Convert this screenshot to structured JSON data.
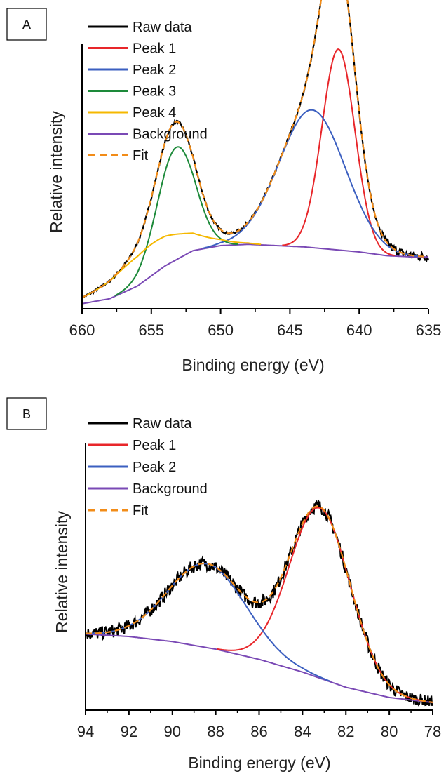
{
  "chart_data": [
    {
      "panel_label": "A",
      "type": "line",
      "xlabel": "Binding energy (eV)",
      "ylabel": "Relative intensity",
      "xlim": [
        660,
        635
      ],
      "xticks": [
        660,
        655,
        650,
        645,
        640,
        635
      ],
      "ylim": [
        0,
        1.05
      ],
      "grid": false,
      "legend_position": "top-left",
      "legend": [
        {
          "name": "Raw data",
          "color": "#000000",
          "style": "solid"
        },
        {
          "name": "Peak 1",
          "color": "#e8262a",
          "style": "solid"
        },
        {
          "name": "Peak 2",
          "color": "#3b5fc0",
          "style": "solid"
        },
        {
          "name": "Peak 3",
          "color": "#1d8a3a",
          "style": "solid"
        },
        {
          "name": "Peak 4",
          "color": "#f5b800",
          "style": "solid"
        },
        {
          "name": "Background",
          "color": "#7a49b5",
          "style": "solid"
        },
        {
          "name": "Fit",
          "color": "#f28c18",
          "style": "dashed"
        }
      ],
      "series": [
        {
          "name": "Background",
          "x": [
            660,
            658,
            656,
            654,
            652,
            650,
            648,
            646,
            644,
            642,
            640,
            638,
            636,
            635
          ],
          "values": [
            0.02,
            0.04,
            0.09,
            0.17,
            0.23,
            0.25,
            0.255,
            0.25,
            0.245,
            0.235,
            0.225,
            0.21,
            0.205,
            0.205
          ]
        },
        {
          "name": "Peak 1",
          "center": 641.5,
          "height": 0.795,
          "fwhm": 2.8
        },
        {
          "name": "Peak 2",
          "center": 643.4,
          "height": 0.545,
          "fwhm": 5.6
        },
        {
          "name": "Peak 3",
          "center": 653.2,
          "height": 0.445,
          "fwhm": 3.2
        },
        {
          "name": "Peak 4",
          "center": 655.0,
          "height": 0.125,
          "fwhm": 6.5
        }
      ]
    },
    {
      "panel_label": "B",
      "type": "line",
      "xlabel": "Binding energy (eV)",
      "ylabel": "Relative intensity",
      "xlim": [
        94,
        78
      ],
      "xticks": [
        94,
        92,
        90,
        88,
        86,
        84,
        82,
        80,
        78
      ],
      "ylim": [
        0,
        1.05
      ],
      "grid": false,
      "legend_position": "top-left",
      "legend": [
        {
          "name": "Raw data",
          "color": "#000000",
          "style": "solid"
        },
        {
          "name": "Peak 1",
          "color": "#e8262a",
          "style": "solid"
        },
        {
          "name": "Peak 2",
          "color": "#3b5fc0",
          "style": "solid"
        },
        {
          "name": "Background",
          "color": "#7a49b5",
          "style": "solid"
        },
        {
          "name": "Fit",
          "color": "#f28c18",
          "style": "dashed"
        }
      ],
      "series": [
        {
          "name": "Background",
          "x": [
            94,
            92,
            90,
            88,
            86,
            84,
            82,
            80,
            78
          ],
          "values": [
            0.3,
            0.29,
            0.27,
            0.24,
            0.2,
            0.15,
            0.09,
            0.05,
            0.03
          ]
        },
        {
          "name": "Peak 1",
          "center": 83.2,
          "height": 0.67,
          "fwhm": 3.3
        },
        {
          "name": "Peak 2",
          "center": 88.4,
          "height": 0.33,
          "fwhm": 4.2
        }
      ]
    }
  ]
}
